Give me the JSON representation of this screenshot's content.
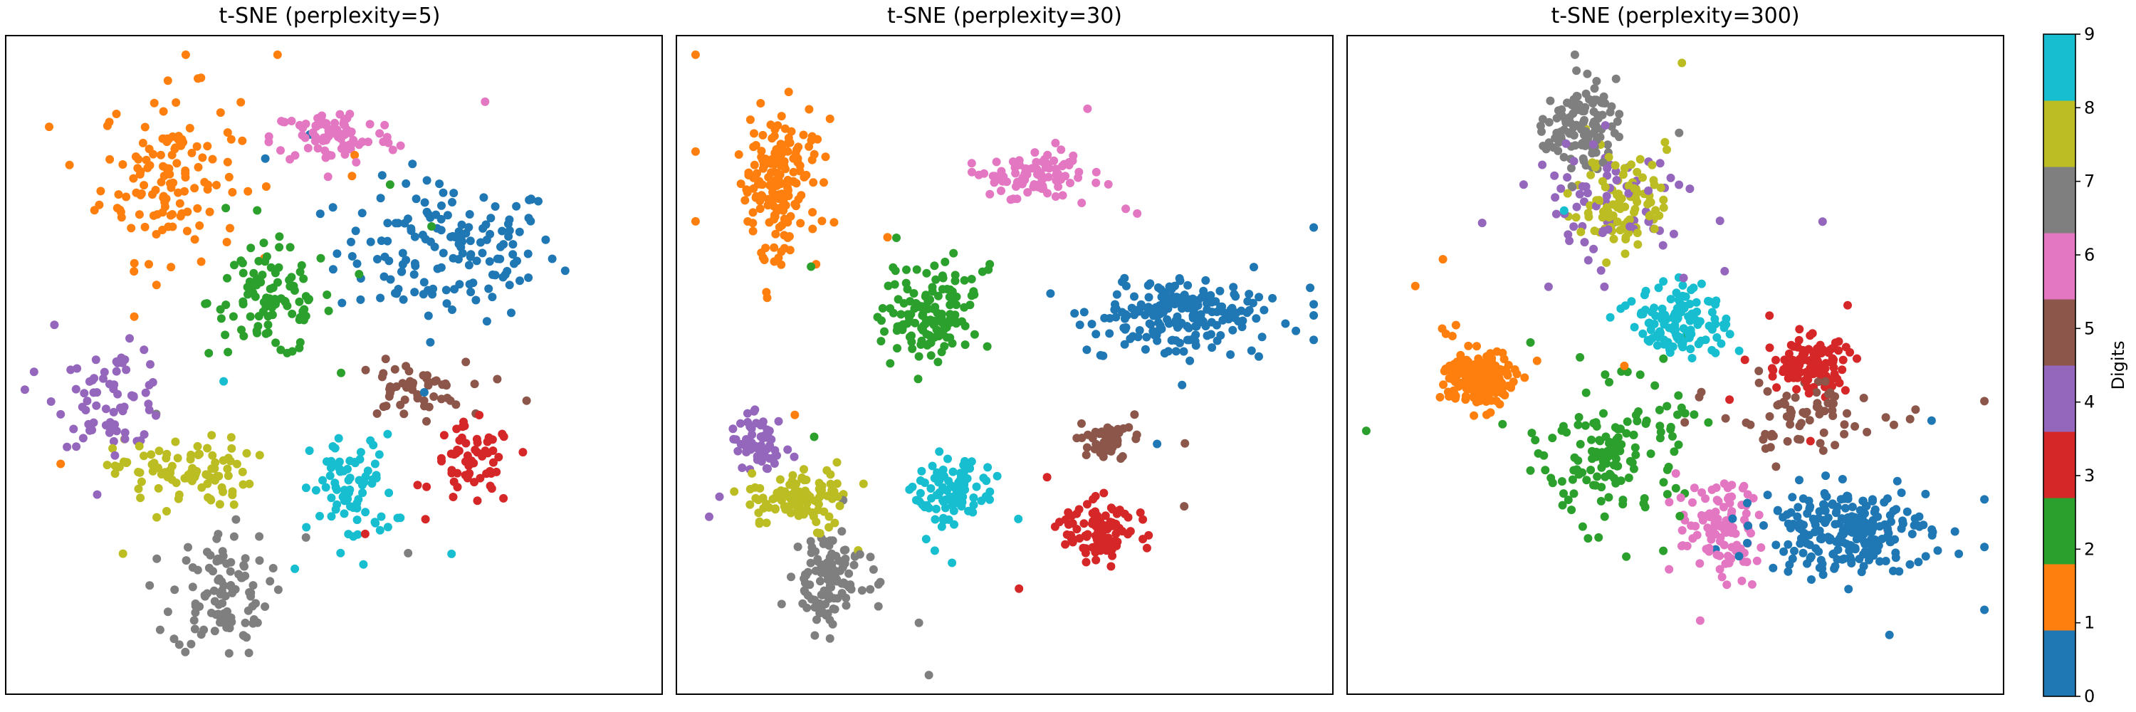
{
  "colorbar": {
    "label": "Digits",
    "ticks": [
      "0",
      "1",
      "2",
      "3",
      "4",
      "5",
      "6",
      "7",
      "8",
      "9"
    ],
    "colors": [
      "#1f77b4",
      "#ff7f0e",
      "#2ca02c",
      "#d62728",
      "#9467bd",
      "#8c564b",
      "#e377c2",
      "#7f7f7f",
      "#bcbd22",
      "#17becf"
    ]
  },
  "chart_data": [
    {
      "type": "scatter",
      "title": "t-SNE (perplexity=5)",
      "xlabel": "",
      "ylabel": "",
      "xlim": [
        0,
        100
      ],
      "ylim": [
        0,
        100
      ],
      "grid": false,
      "color_by": "digit",
      "clusters": [
        {
          "digit": 0,
          "center": [
            68,
            68
          ],
          "spread": [
            16,
            10
          ],
          "count": 150
        },
        {
          "digit": 1,
          "center": [
            24,
            80
          ],
          "spread": [
            10,
            12
          ],
          "count": 130
        },
        {
          "digit": 2,
          "center": [
            40,
            60
          ],
          "spread": [
            9,
            8
          ],
          "count": 100
        },
        {
          "digit": 3,
          "center": [
            72,
            34
          ],
          "spread": [
            6,
            6
          ],
          "count": 60
        },
        {
          "digit": 4,
          "center": [
            15,
            45
          ],
          "spread": [
            8,
            7
          ],
          "count": 70
        },
        {
          "digit": 5,
          "center": [
            62,
            46
          ],
          "spread": [
            8,
            4
          ],
          "count": 50
        },
        {
          "digit": 6,
          "center": [
            50,
            86
          ],
          "spread": [
            9,
            4
          ],
          "count": 80
        },
        {
          "digit": 7,
          "center": [
            32,
            14
          ],
          "spread": [
            7,
            9
          ],
          "count": 100
        },
        {
          "digit": 8,
          "center": [
            26,
            33
          ],
          "spread": [
            10,
            5
          ],
          "count": 90
        },
        {
          "digit": 9,
          "center": [
            53,
            30
          ],
          "spread": [
            6,
            8
          ],
          "count": 80
        }
      ]
    },
    {
      "type": "scatter",
      "title": "t-SNE (perplexity=30)",
      "xlabel": "",
      "ylabel": "",
      "xlim": [
        0,
        100
      ],
      "ylim": [
        0,
        100
      ],
      "grid": false,
      "color_by": "digit",
      "clusters": [
        {
          "digit": 0,
          "center": [
            78,
            58
          ],
          "spread": [
            12,
            5
          ],
          "count": 200
        },
        {
          "digit": 1,
          "center": [
            14,
            78
          ],
          "spread": [
            6,
            10
          ],
          "count": 170
        },
        {
          "digit": 2,
          "center": [
            38,
            58
          ],
          "spread": [
            7,
            7
          ],
          "count": 130
        },
        {
          "digit": 3,
          "center": [
            65,
            24
          ],
          "spread": [
            5,
            4
          ],
          "count": 90
        },
        {
          "digit": 4,
          "center": [
            11,
            38
          ],
          "spread": [
            4,
            5
          ],
          "count": 60
        },
        {
          "digit": 5,
          "center": [
            66,
            38
          ],
          "spread": [
            6,
            3
          ],
          "count": 50
        },
        {
          "digit": 6,
          "center": [
            55,
            80
          ],
          "spread": [
            7,
            4
          ],
          "count": 90
        },
        {
          "digit": 7,
          "center": [
            22,
            16
          ],
          "spread": [
            5,
            6
          ],
          "count": 110
        },
        {
          "digit": 8,
          "center": [
            18,
            29
          ],
          "spread": [
            7,
            4
          ],
          "count": 100
        },
        {
          "digit": 9,
          "center": [
            42,
            30
          ],
          "spread": [
            5,
            5
          ],
          "count": 90
        }
      ]
    },
    {
      "type": "scatter",
      "title": "t-SNE (perplexity=300)",
      "xlabel": "",
      "ylabel": "",
      "xlim": [
        0,
        100
      ],
      "ylim": [
        0,
        100
      ],
      "grid": false,
      "color_by": "digit",
      "clusters": [
        {
          "digit": 0,
          "center": [
            77,
            24
          ],
          "spread": [
            12,
            6
          ],
          "count": 230
        },
        {
          "digit": 1,
          "center": [
            19,
            48
          ],
          "spread": [
            5,
            4
          ],
          "count": 190
        },
        {
          "digit": 2,
          "center": [
            40,
            36
          ],
          "spread": [
            10,
            10
          ],
          "count": 140
        },
        {
          "digit": 3,
          "center": [
            71,
            50
          ],
          "spread": [
            6,
            4
          ],
          "count": 110
        },
        {
          "digit": 4,
          "center": [
            40,
            76
          ],
          "spread": [
            14,
            9
          ],
          "count": 70
        },
        {
          "digit": 5,
          "center": [
            70,
            42
          ],
          "spread": [
            12,
            5
          ],
          "count": 70
        },
        {
          "digit": 6,
          "center": [
            57,
            24
          ],
          "spread": [
            6,
            7
          ],
          "count": 100
        },
        {
          "digit": 7,
          "center": [
            35,
            88
          ],
          "spread": [
            5,
            6
          ],
          "count": 110
        },
        {
          "digit": 8,
          "center": [
            42,
            76
          ],
          "spread": [
            6,
            7
          ],
          "count": 100
        },
        {
          "digit": 9,
          "center": [
            51,
            57
          ],
          "spread": [
            7,
            5
          ],
          "count": 120
        }
      ]
    }
  ]
}
